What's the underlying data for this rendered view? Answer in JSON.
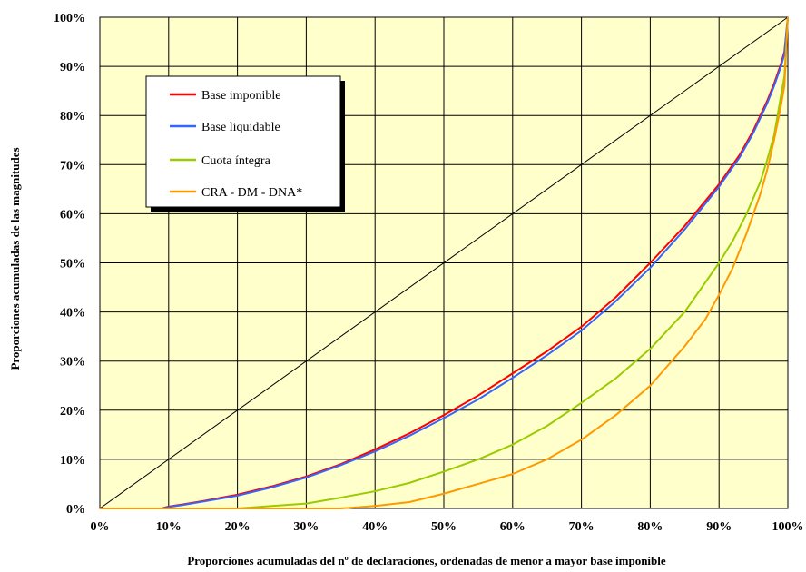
{
  "chart_data": {
    "type": "line",
    "title": "",
    "xlabel": "Proporciones acumuladas del nº de declaraciones, ordenadas de menor a mayor base imponible",
    "ylabel": "Proporciones acumuladas de las magnitudes",
    "xlim": [
      0,
      100
    ],
    "ylim": [
      0,
      100
    ],
    "x_ticks": [
      "0%",
      "10%",
      "20%",
      "30%",
      "40%",
      "50%",
      "60%",
      "70%",
      "80%",
      "90%",
      "100%"
    ],
    "y_ticks": [
      "0%",
      "10%",
      "20%",
      "30%",
      "40%",
      "50%",
      "60%",
      "70%",
      "80%",
      "90%",
      "100%"
    ],
    "grid": true,
    "background": "#ffffcc",
    "legend_position": "upper-left",
    "equality_line": {
      "color": "#000000",
      "x": [
        0,
        100
      ],
      "y": [
        0,
        100
      ]
    },
    "series": [
      {
        "name": "Base imponible",
        "color": "#ff0000",
        "x": [
          0,
          9,
          10,
          12,
          15,
          20,
          25,
          30,
          35,
          40,
          45,
          50,
          55,
          60,
          65,
          70,
          75,
          80,
          85,
          90,
          93,
          95,
          97,
          98,
          99,
          99.5,
          100
        ],
        "y": [
          0,
          0,
          0.4,
          0.8,
          1.5,
          2.8,
          4.5,
          6.5,
          9,
          12,
          15.3,
          19,
          23,
          27.5,
          32,
          37,
          43,
          50,
          57.5,
          66,
          72,
          77,
          83,
          86.5,
          90.5,
          93,
          100
        ]
      },
      {
        "name": "Base liquidable",
        "color": "#3366ff",
        "x": [
          0,
          9,
          10,
          12,
          15,
          20,
          25,
          30,
          35,
          40,
          45,
          50,
          55,
          60,
          65,
          70,
          75,
          80,
          85,
          90,
          93,
          95,
          97,
          98,
          99,
          99.5,
          100
        ],
        "y": [
          0,
          0,
          0.3,
          0.7,
          1.4,
          2.6,
          4.3,
          6.3,
          8.8,
          11.6,
          14.8,
          18.4,
          22.2,
          26.6,
          31.2,
          36.2,
          42.2,
          49,
          56.8,
          65.5,
          71.5,
          76.5,
          82.5,
          86,
          90,
          92.5,
          100
        ]
      },
      {
        "name": "Cuota íntegra",
        "color": "#99cc00",
        "x": [
          0,
          20,
          25,
          30,
          35,
          40,
          45,
          50,
          55,
          60,
          65,
          70,
          75,
          80,
          85,
          90,
          92,
          94,
          96,
          97,
          98,
          99,
          99.5,
          100
        ],
        "y": [
          0,
          0,
          0.5,
          1,
          2.2,
          3.5,
          5.2,
          7.5,
          10,
          13,
          16.8,
          21.5,
          26.5,
          32.5,
          40,
          50,
          54.5,
          60,
          66.5,
          71,
          76,
          84,
          88,
          100
        ]
      },
      {
        "name": "CRA - DM - DNA*",
        "color": "#ff9900",
        "x": [
          0,
          35,
          40,
          45,
          50,
          55,
          60,
          65,
          70,
          75,
          80,
          85,
          88,
          90,
          92,
          94,
          96,
          97,
          98,
          99,
          99.5,
          100
        ],
        "y": [
          0,
          0,
          0.5,
          1.3,
          3,
          5,
          7,
          10,
          14,
          19,
          25,
          33,
          38.5,
          43.5,
          49,
          56,
          64,
          69,
          75,
          82,
          86,
          100
        ]
      }
    ]
  }
}
